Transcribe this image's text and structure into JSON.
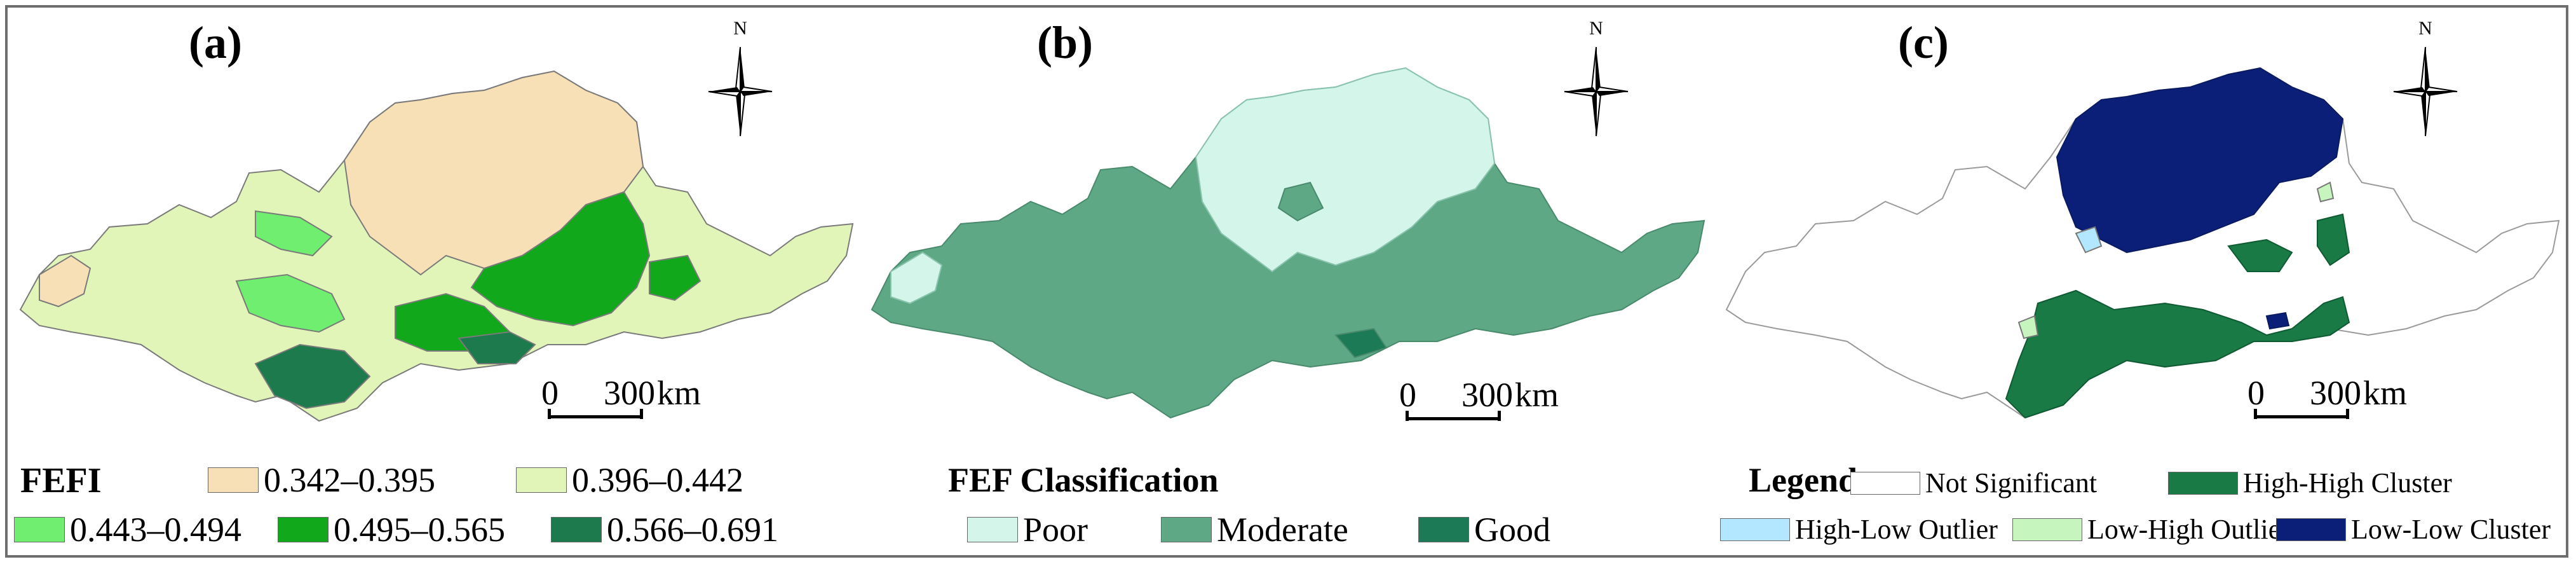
{
  "panels": [
    {
      "label": "(a)",
      "compass_label": "N",
      "scale": {
        "zero": "0",
        "distance": "300",
        "unit": "km"
      },
      "legend_title": "FEFI",
      "legend": [
        {
          "label": "0.342–0.395",
          "color": "#f7e0b5"
        },
        {
          "label": "0.396–0.442",
          "color": "#e2f5b8"
        },
        {
          "label": "0.443–0.494",
          "color": "#6fee6f"
        },
        {
          "label": "0.495–0.565",
          "color": "#11a91b"
        },
        {
          "label": "0.566–0.691",
          "color": "#1c7a4c"
        }
      ]
    },
    {
      "label": "(b)",
      "compass_label": "N",
      "scale": {
        "zero": "0",
        "distance": "300",
        "unit": "km"
      },
      "legend_title": "FEF Classification",
      "legend": [
        {
          "label": "Poor",
          "color": "#d4f5ea"
        },
        {
          "label": "Moderate",
          "color": "#5ea886"
        },
        {
          "label": "Good",
          "color": "#1c7a57"
        }
      ]
    },
    {
      "label": "(c)",
      "compass_label": "N",
      "scale": {
        "zero": "0",
        "distance": "300",
        "unit": "km"
      },
      "legend_title": "Legend",
      "legend": [
        {
          "label": "Not Significant",
          "color": "#ffffff"
        },
        {
          "label": "High-High Cluster",
          "color": "#197a46"
        },
        {
          "label": "High-Low Outlier",
          "color": "#b3e7ff"
        },
        {
          "label": "Low-High Outlier",
          "color": "#c6f5be"
        },
        {
          "label": "Low-Low Cluster",
          "color": "#0c1f78"
        }
      ]
    }
  ]
}
